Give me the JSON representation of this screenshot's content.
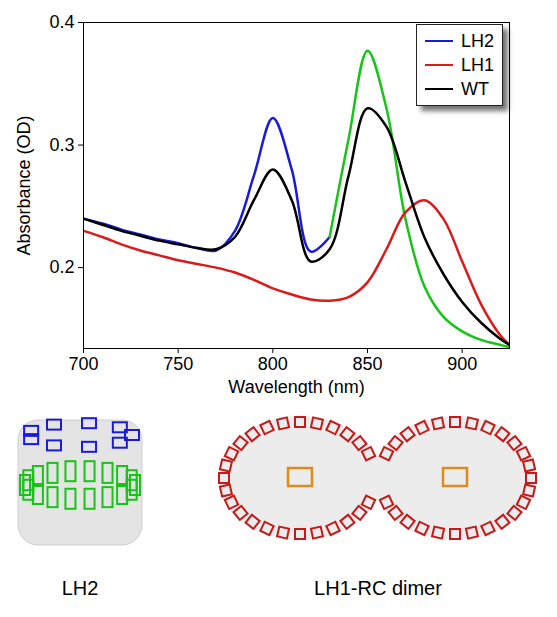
{
  "chart_data": {
    "type": "line",
    "x_label": "Wavelength (nm)",
    "y_label": "Absorbance (OD)",
    "x": [
      700,
      710,
      720,
      730,
      740,
      750,
      760,
      770,
      780,
      790,
      800,
      810,
      820,
      830,
      840,
      850,
      860,
      870,
      880,
      890,
      900,
      910,
      920,
      925
    ],
    "series": [
      {
        "name": "LH2",
        "color": "#1a1adc",
        "colors": [
          "#1a1adc",
          "#1a1adc",
          "#1a1adc",
          "#1a1adc",
          "#1a1adc",
          "#1a1adc",
          "#1a1adc",
          "#1a1adc",
          "#1a1adc",
          "#1a1adc",
          "#1a1adc",
          "#1a1adc",
          "#1a1adc",
          "#17c417",
          "#17c417",
          "#17c417",
          "#17c417",
          "#17c417",
          "#17c417",
          "#17c417",
          "#17c417",
          "#17c417",
          "#17c417",
          "#17c417"
        ],
        "values": [
          0.24,
          0.236,
          0.231,
          0.227,
          0.223,
          0.22,
          0.216,
          0.214,
          0.23,
          0.275,
          0.322,
          0.28,
          0.213,
          0.225,
          0.305,
          0.377,
          0.33,
          0.24,
          0.185,
          0.16,
          0.148,
          0.141,
          0.137,
          0.135
        ]
      },
      {
        "name": "LH1",
        "color": "#dc1a1a",
        "values": [
          0.23,
          0.225,
          0.219,
          0.214,
          0.21,
          0.206,
          0.203,
          0.2,
          0.196,
          0.19,
          0.183,
          0.178,
          0.174,
          0.173,
          0.176,
          0.188,
          0.215,
          0.245,
          0.255,
          0.24,
          0.205,
          0.17,
          0.145,
          0.137
        ]
      },
      {
        "name": "WT",
        "color": "#000000",
        "values": [
          0.24,
          0.235,
          0.23,
          0.226,
          0.222,
          0.219,
          0.216,
          0.215,
          0.225,
          0.255,
          0.28,
          0.255,
          0.205,
          0.215,
          0.275,
          0.33,
          0.315,
          0.27,
          0.225,
          0.195,
          0.172,
          0.155,
          0.142,
          0.137
        ]
      }
    ],
    "xlim": [
      700,
      925
    ],
    "xticks": [
      700,
      750,
      800,
      850,
      900
    ],
    "ylim": [
      0.134,
      0.4
    ],
    "yticks": [
      0.2,
      0.3,
      0.4
    ],
    "legend": "top-right",
    "grid": false
  },
  "structures": {
    "labels": [
      "LH2",
      "LH1-RC dimer"
    ]
  }
}
